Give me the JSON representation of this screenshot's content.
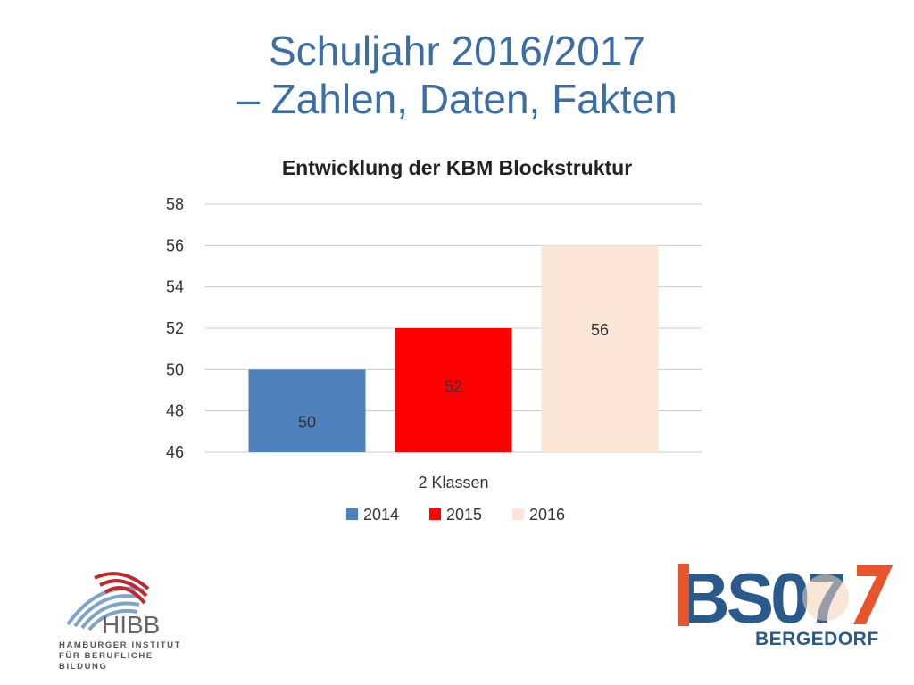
{
  "slide": {
    "title_line1": "Schuljahr 2016/2017",
    "title_line2": "– Zahlen, Daten, Fakten"
  },
  "chart_data": {
    "type": "bar",
    "title": "Entwicklung der KBM Blockstruktur",
    "categories": [
      "2 Klassen"
    ],
    "series": [
      {
        "name": "2014",
        "values": [
          50
        ],
        "color": "#4f81bd"
      },
      {
        "name": "2015",
        "values": [
          52
        ],
        "color": "#ff0000"
      },
      {
        "name": "2016",
        "values": [
          56
        ],
        "color": "#fbe5d6"
      }
    ],
    "ylim": [
      46,
      58
    ],
    "yticks": [
      46,
      48,
      50,
      52,
      54,
      56,
      58
    ],
    "grid": true,
    "legend": "bottom",
    "xlabel": "",
    "ylabel": ""
  },
  "logos": {
    "hibb": {
      "name": "HIBB",
      "line1": "HAMBURGER INSTITUT",
      "line2": "FÜR BERUFLICHE BILDUNG"
    },
    "bs07": {
      "name": "BS07",
      "subtitle": "BERGEDORF",
      "colors": {
        "blue": "#2a5a8c",
        "orange": "#e8542b",
        "cream": "#f3d3b8"
      }
    }
  }
}
